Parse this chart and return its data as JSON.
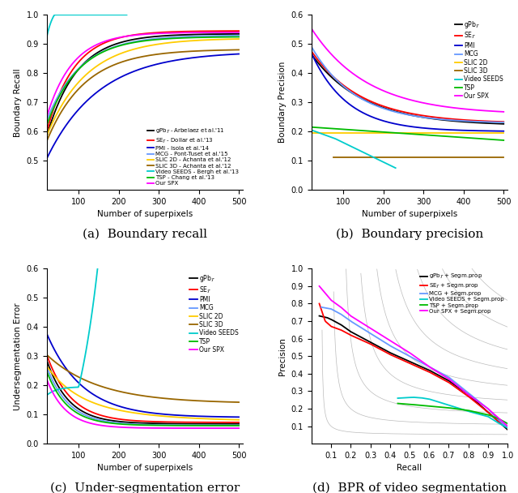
{
  "colors": {
    "gpb": "#000000",
    "se": "#ff0000",
    "pmi": "#0000cc",
    "mcg": "#6699ff",
    "slic2d": "#ffcc00",
    "slic3d": "#996600",
    "seeds": "#00cccc",
    "tsp": "#00bb00",
    "spx": "#ff00ff"
  },
  "subplot_a": {
    "caption": "(a)  Boundary recall",
    "xlabel": "Number of superpixels",
    "ylabel": "Boundary Recall",
    "xlim": [
      20,
      510
    ],
    "ylim": [
      0.4,
      1.0
    ],
    "yticks": [
      0.5,
      0.6,
      0.7,
      0.8,
      0.9,
      1.0
    ],
    "xticks": [
      100,
      200,
      300,
      400,
      500
    ],
    "legend_labels": [
      "gPb$_\\mathcal{T}$ - Arbelaez et al.'11",
      "SE$_\\mathcal{T}$ - Dollar et al.'13",
      "PMI - Isola et al.'14",
      "MCG - Pont-Tuset et al.'15",
      "SLIC 2D - Achanta et al.'12",
      "SLIC 3D - Achanta et al.'12",
      "Video SEEDS - Bergh et al.'13",
      "TSP - Chang et al.'13",
      "Our SPX"
    ]
  },
  "subplot_b": {
    "caption": "(b)  Boundary precision",
    "xlabel": "Number of superpixels",
    "ylabel": "Boundary Precision",
    "xlim": [
      20,
      510
    ],
    "ylim": [
      0.0,
      0.6
    ],
    "yticks": [
      0.0,
      0.1,
      0.2,
      0.3,
      0.4,
      0.5,
      0.6
    ],
    "xticks": [
      100,
      200,
      300,
      400,
      500
    ],
    "legend_labels": [
      "gPb$_\\mathcal{T}$",
      "SE$_\\mathcal{T}$",
      "PMI",
      "MCG",
      "SLIC 2D",
      "SLIC 3D",
      "Video SEEDS",
      "TSP",
      "Our SPX"
    ]
  },
  "subplot_c": {
    "caption": "(c)  Under-segmentation error",
    "xlabel": "Number of superpixels",
    "ylabel": "Undersegmentation Error",
    "xlim": [
      20,
      510
    ],
    "ylim": [
      0.0,
      0.6
    ],
    "yticks": [
      0.0,
      0.1,
      0.2,
      0.3,
      0.4,
      0.5,
      0.6
    ],
    "xticks": [
      100,
      200,
      300,
      400,
      500
    ],
    "legend_labels": [
      "gPb$_\\mathcal{T}$",
      "SE$_\\mathcal{T}$",
      "PMI",
      "MCG",
      "SLIC 2D",
      "SLIC 3D",
      "Video SEEDS",
      "TSP",
      "Our SPX"
    ]
  },
  "subplot_d": {
    "caption": "(d)  BPR of video segmentation",
    "xlabel": "Recall",
    "ylabel": "Precision",
    "xlim": [
      0.0,
      1.0
    ],
    "ylim": [
      0.0,
      1.0
    ],
    "xticks": [
      0.1,
      0.2,
      0.3,
      0.4,
      0.5,
      0.6,
      0.7,
      0.8,
      0.9,
      1.0
    ],
    "yticks": [
      0.1,
      0.2,
      0.3,
      0.4,
      0.5,
      0.6,
      0.7,
      0.8,
      0.9,
      1.0
    ],
    "legend_labels": [
      "gPb$_\\mathcal{T}$ + Segm.prop",
      "SE$_\\mathcal{T}$ + Segm.prop",
      "MCG + Segm.prop",
      "Video SEEDS + Segm.prop",
      "TSP + Segm.prop",
      "Our SPX + Segm.prop"
    ]
  }
}
